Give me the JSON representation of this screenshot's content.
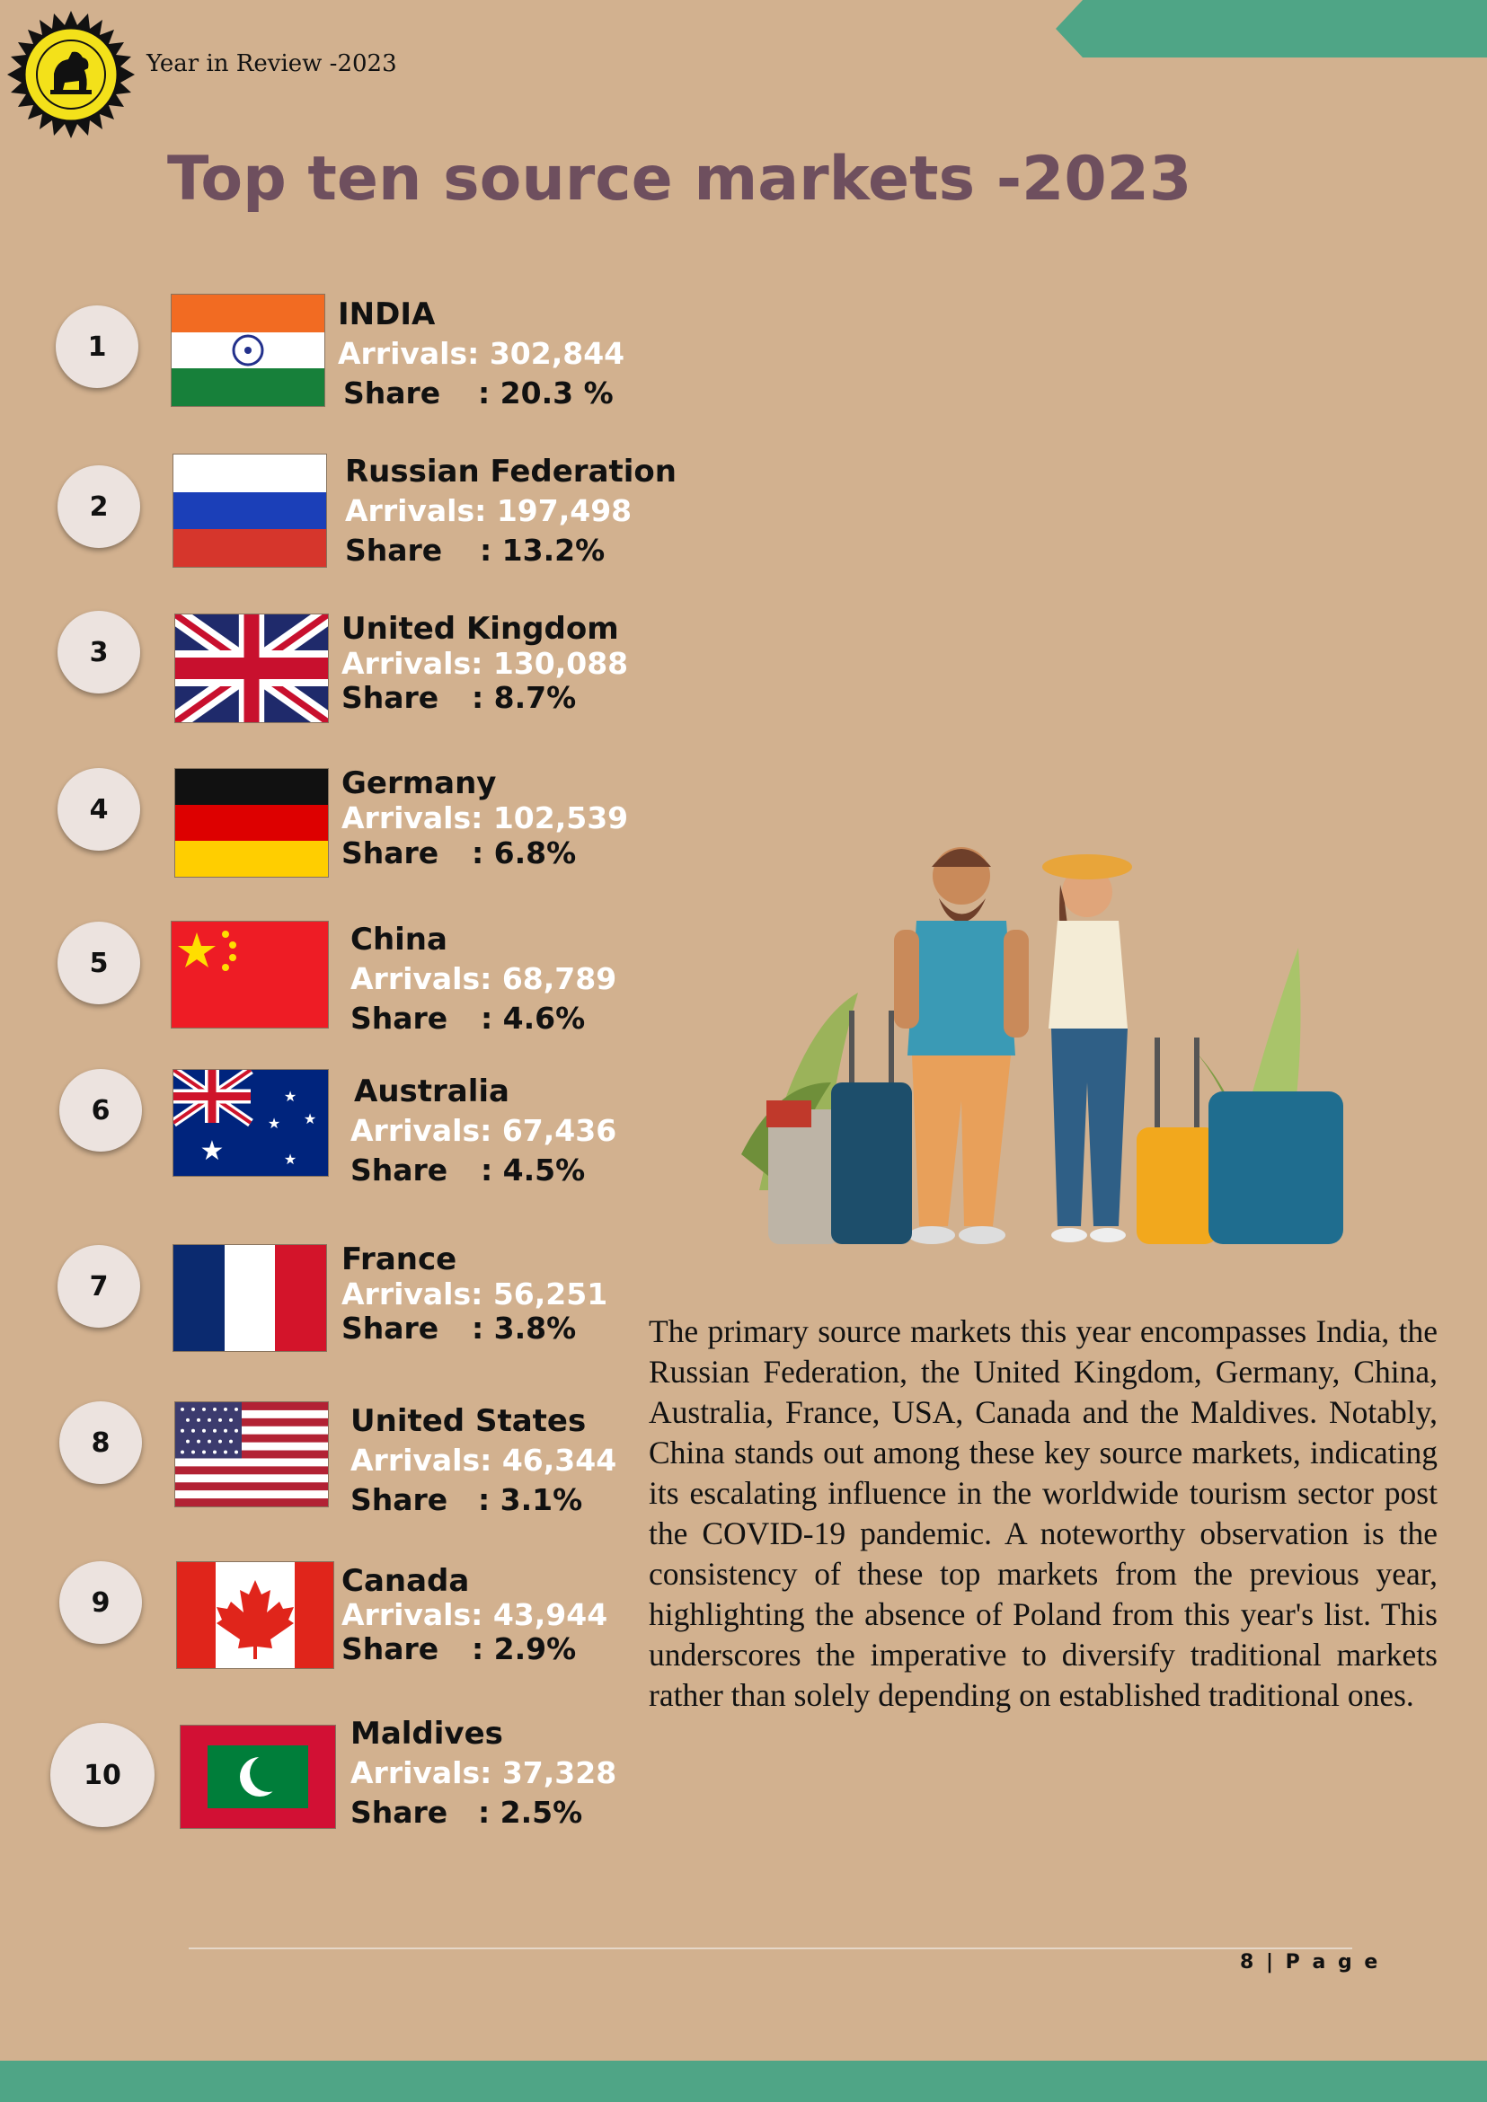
{
  "header": {
    "text": "Year in Review -2023",
    "logo_icon": "lion-emblem-logo",
    "accent_color": "#4fa586"
  },
  "title": "Top ten source markets -2023",
  "arrivals_label": "Arrivals:",
  "share_label": "Share",
  "markets": [
    {
      "rank": "1",
      "name": "INDIA",
      "arrivals": "302,844",
      "share": ": 20.3 %",
      "flag_icon": "india-flag-icon"
    },
    {
      "rank": "2",
      "name": "Russian Federation",
      "arrivals": "197,498",
      "share": ": 13.2%",
      "flag_icon": "russia-flag-icon"
    },
    {
      "rank": "3",
      "name": "United Kingdom",
      "arrivals": "130,088",
      "share": ":  8.7%",
      "flag_icon": "uk-flag-icon"
    },
    {
      "rank": "4",
      "name": "Germany",
      "arrivals": "102,539",
      "share": ":  6.8%",
      "flag_icon": "germany-flag-icon"
    },
    {
      "rank": "5",
      "name": "China",
      "arrivals": "68,789",
      "share": ":  4.6%",
      "flag_icon": "china-flag-icon"
    },
    {
      "rank": "6",
      "name": "Australia",
      "arrivals": "67,436",
      "share": ":  4.5%",
      "flag_icon": "australia-flag-icon"
    },
    {
      "rank": "7",
      "name": "France",
      "arrivals": "56,251",
      "share": ":  3.8%",
      "flag_icon": "france-flag-icon"
    },
    {
      "rank": "8",
      "name": "United States",
      "arrivals": "46,344",
      "share": ": 3.1%",
      "flag_icon": "usa-flag-icon"
    },
    {
      "rank": "9",
      "name": "Canada",
      "arrivals": "43,944",
      "share": ":  2.9%",
      "flag_icon": "canada-flag-icon"
    },
    {
      "rank": "10",
      "name": "Maldives",
      "arrivals": "37,328",
      "share": ":  2.5%",
      "flag_icon": "maldives-flag-icon"
    }
  ],
  "illustration_icon": "traveler-couple-illustration",
  "summary": "The primary source markets this year encompasses India, the Russian Federation, the United Kingdom, Germany, China, Australia, France, USA, Canada and the Maldives. Notably, China stands out among these key source markets, indicating its escalating influence in the worldwide tourism sector post the COVID-19 pandemic. A noteworthy observation is the consistency of these top markets from the previous year, highlighting the absence of Poland from this year's list. This underscores the imperative to diversify traditional markets rather than solely depending on established traditional ones.",
  "footer": {
    "page": "8 | P a g e"
  }
}
